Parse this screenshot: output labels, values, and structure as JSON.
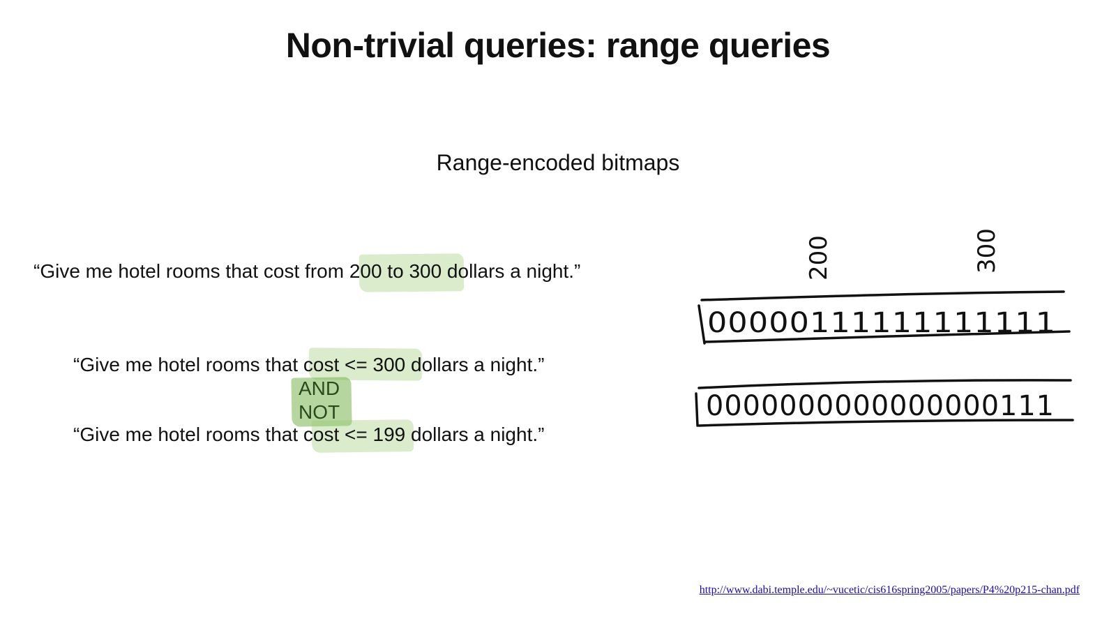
{
  "slide": {
    "title": "Non-trivial queries: range queries",
    "subtitle": "Range-encoded bitmaps"
  },
  "query1": {
    "before": "“Give me hotel rooms that cost from ",
    "highlight": "200 to 300",
    "after": " dollars a night.”"
  },
  "query2": {
    "before": "“Give me hotel rooms that ",
    "highlight": "cost <= 300",
    "after": " dollars a night.”"
  },
  "operator": {
    "line1": "AND",
    "line2": "NOT"
  },
  "query3": {
    "before": "“Give me hotel rooms that ",
    "highlight": "cost <= 199",
    "after": " dollars a night.”"
  },
  "sketch": {
    "label_200": "200",
    "label_300": "300",
    "bitmap1": "00000111111111111",
    "bitmap2": "0000000000000000111"
  },
  "reference": {
    "url": "http://www.dabi.temple.edu/~vucetic/cis616spring2005/papers/P4%20p215-chan.pdf"
  },
  "colors": {
    "highlight": "#96c86e",
    "link": "#1a0dab"
  }
}
